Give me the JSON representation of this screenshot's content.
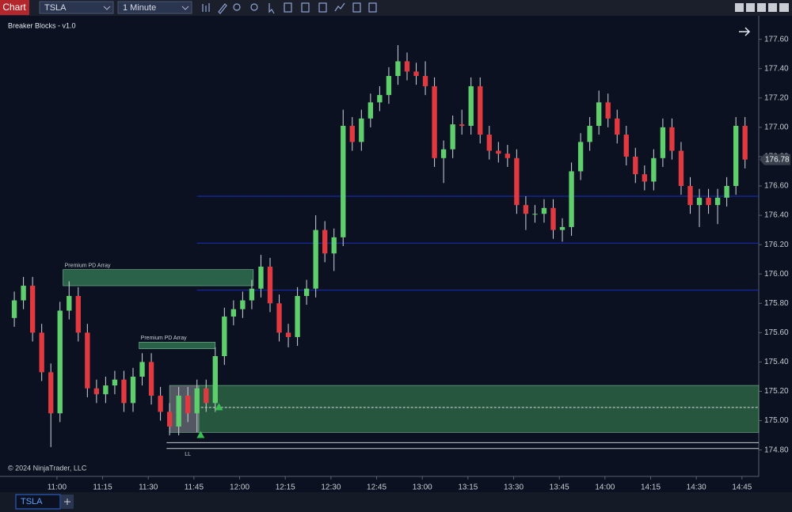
{
  "toolbar": {
    "chart_button": "Chart",
    "instrument": "TSLA",
    "interval": "1 Minute"
  },
  "tab": "TSLA",
  "chart_data": {
    "type": "candlestick",
    "title": "Breaker Blocks - v1.0",
    "copyright": "© 2024 NinjaTrader, LLC",
    "up_color": "#5fcf6e",
    "down_color": "#e0393f",
    "x": [
      646,
      649,
      652,
      655,
      658,
      661,
      664,
      667,
      670,
      673,
      676,
      679,
      682,
      685,
      688,
      691,
      694,
      697,
      700,
      703,
      706,
      709,
      712,
      715,
      718,
      721,
      724,
      727,
      730,
      733,
      736,
      739,
      742,
      745,
      748,
      751,
      754,
      757,
      760,
      763,
      766,
      769,
      772,
      775,
      778,
      781,
      784,
      787,
      790,
      793,
      796,
      799,
      802,
      805,
      808,
      811,
      814,
      817,
      820,
      823,
      826,
      829,
      832,
      835,
      838,
      841,
      844,
      847,
      850,
      853,
      856,
      859,
      862,
      865,
      868,
      871,
      874,
      877,
      880,
      883,
      886
    ],
    "open": [
      175.7,
      175.82,
      175.92,
      175.6,
      175.33,
      175.05,
      175.75,
      175.85,
      175.6,
      175.22,
      175.18,
      175.24,
      175.28,
      175.12,
      175.3,
      175.4,
      175.17,
      175.06,
      174.96,
      175.17,
      175.05,
      175.22,
      175.12,
      175.44,
      175.71,
      175.76,
      175.82,
      175.9,
      176.05,
      175.8,
      175.6,
      175.57,
      175.85,
      175.9,
      176.3,
      176.14,
      176.25,
      177.01,
      176.9,
      177.06,
      177.17,
      177.22,
      177.35,
      177.45,
      177.38,
      177.35,
      177.28,
      176.79,
      176.85,
      177.02,
      177.01,
      177.28,
      176.95,
      176.84,
      176.82,
      176.79,
      176.47,
      176.41,
      176.41,
      176.45,
      176.3,
      176.32,
      176.7,
      176.9,
      177.01,
      177.17,
      177.06,
      176.95,
      176.8,
      176.68,
      176.63,
      176.79,
      177.0,
      176.84,
      176.6,
      176.47,
      176.52,
      176.47,
      176.52,
      176.6,
      177.01
    ],
    "high": [
      175.88,
      175.98,
      175.98,
      175.66,
      175.39,
      175.81,
      175.95,
      175.91,
      175.66,
      175.28,
      175.3,
      175.34,
      175.34,
      175.36,
      175.46,
      175.46,
      175.23,
      175.12,
      175.23,
      175.23,
      175.28,
      175.28,
      175.5,
      175.77,
      175.82,
      175.88,
      175.96,
      176.13,
      176.11,
      175.86,
      175.66,
      175.91,
      175.96,
      176.4,
      176.36,
      176.31,
      177.12,
      177.07,
      177.12,
      177.23,
      177.28,
      177.41,
      177.56,
      177.51,
      177.44,
      177.45,
      177.34,
      176.91,
      177.08,
      177.12,
      177.34,
      177.34,
      177.01,
      176.9,
      176.88,
      176.85,
      176.53,
      176.47,
      176.51,
      176.51,
      176.38,
      176.76,
      176.96,
      177.07,
      177.25,
      177.23,
      177.12,
      177.01,
      176.86,
      176.74,
      176.85,
      177.06,
      177.06,
      176.9,
      176.66,
      176.58,
      176.58,
      176.58,
      176.66,
      177.07,
      177.07
    ],
    "low": [
      175.64,
      175.76,
      175.54,
      175.27,
      174.82,
      174.99,
      175.69,
      175.54,
      175.16,
      175.12,
      175.12,
      175.18,
      175.06,
      175.06,
      175.24,
      175.11,
      175.0,
      174.9,
      174.9,
      174.99,
      174.92,
      175.06,
      175.06,
      175.38,
      175.65,
      175.7,
      175.76,
      175.84,
      175.74,
      175.54,
      175.5,
      175.51,
      175.79,
      175.84,
      176.08,
      176.02,
      176.19,
      176.84,
      176.84,
      177.0,
      177.11,
      177.16,
      177.29,
      177.32,
      177.29,
      177.22,
      176.73,
      176.62,
      176.79,
      176.95,
      176.95,
      176.89,
      176.78,
      176.76,
      176.73,
      176.41,
      176.3,
      176.35,
      176.35,
      176.24,
      176.22,
      176.26,
      176.64,
      176.84,
      176.95,
      177.0,
      176.89,
      176.74,
      176.62,
      176.57,
      176.57,
      176.73,
      176.78,
      176.54,
      176.41,
      176.32,
      176.41,
      176.34,
      176.46,
      176.54,
      176.72
    ],
    "close": [
      175.82,
      175.92,
      175.6,
      175.33,
      175.05,
      175.75,
      175.85,
      175.6,
      175.22,
      175.18,
      175.24,
      175.28,
      175.12,
      175.3,
      175.4,
      175.17,
      175.06,
      174.96,
      175.17,
      175.05,
      175.22,
      175.12,
      175.44,
      175.71,
      175.76,
      175.82,
      175.9,
      176.05,
      175.8,
      175.6,
      175.57,
      175.85,
      175.9,
      176.3,
      176.14,
      176.25,
      177.01,
      176.9,
      177.06,
      177.17,
      177.22,
      177.35,
      177.45,
      177.38,
      177.35,
      177.28,
      176.79,
      176.85,
      177.02,
      177.01,
      177.28,
      176.95,
      176.84,
      176.82,
      176.79,
      176.47,
      176.41,
      176.41,
      176.45,
      176.3,
      176.32,
      176.7,
      176.9,
      177.01,
      177.17,
      177.06,
      176.95,
      176.8,
      176.68,
      176.63,
      176.79,
      177.0,
      176.84,
      176.6,
      176.47,
      176.52,
      176.47,
      176.52,
      176.6,
      177.01,
      176.78
    ],
    "xlim": [
      641.3,
      890.5
    ],
    "xticks": [
      {
        "value": 660,
        "label": "11:00"
      },
      {
        "value": 675,
        "label": "11:15"
      },
      {
        "value": 690,
        "label": "11:30"
      },
      {
        "value": 705,
        "label": "11:45"
      },
      {
        "value": 720,
        "label": "12:00"
      },
      {
        "value": 735,
        "label": "12:15"
      },
      {
        "value": 750,
        "label": "12:30"
      },
      {
        "value": 765,
        "label": "12:45"
      },
      {
        "value": 780,
        "label": "13:00"
      },
      {
        "value": 795,
        "label": "13:15"
      },
      {
        "value": 810,
        "label": "13:30"
      },
      {
        "value": 825,
        "label": "13:45"
      },
      {
        "value": 840,
        "label": "14:00"
      },
      {
        "value": 855,
        "label": "14:15"
      },
      {
        "value": 870,
        "label": "14:30"
      },
      {
        "value": 885,
        "label": "14:45"
      }
    ],
    "ylim": [
      174.62,
      177.76
    ],
    "yticks": [
      {
        "value": 174.8,
        "label": "174.80"
      },
      {
        "value": 175.0,
        "label": "175.00"
      },
      {
        "value": 175.2,
        "label": "175.20"
      },
      {
        "value": 175.4,
        "label": "175.40"
      },
      {
        "value": 175.6,
        "label": "175.60"
      },
      {
        "value": 175.8,
        "label": "175.80"
      },
      {
        "value": 176.0,
        "label": "176.00"
      },
      {
        "value": 176.2,
        "label": "176.20"
      },
      {
        "value": 176.4,
        "label": "176.40"
      },
      {
        "value": 176.6,
        "label": "176.60"
      },
      {
        "value": 176.8,
        "label": "176.80"
      },
      {
        "value": 177.0,
        "label": "177.00"
      },
      {
        "value": 177.2,
        "label": "177.20"
      },
      {
        "value": 177.4,
        "label": "177.40"
      },
      {
        "value": 177.6,
        "label": "177.60"
      }
    ],
    "last_price": 176.78,
    "zones": [
      {
        "label": "Premium PD Array",
        "x": [
          662,
          724.5
        ],
        "y": [
          175.92,
          176.03
        ],
        "color": "#2c6b4c"
      },
      {
        "label": "Premium PD Array",
        "x": [
          687,
          712
        ],
        "y": [
          175.49,
          175.535
        ],
        "color": "#2c6b4c"
      },
      {
        "x": [
          697,
          706.6
        ],
        "y": [
          174.92,
          175.24
        ],
        "color": "#5a5f68"
      },
      {
        "x": [
          706.6,
          890.5
        ],
        "y": [
          174.92,
          175.24
        ],
        "color": "#2a5e43"
      }
    ],
    "levels": [
      {
        "price": 176.53,
        "x": [
          706,
          890.5
        ],
        "color": "#1a2fc0"
      },
      {
        "price": 176.21,
        "x": [
          706,
          890.5
        ],
        "color": "#1a2fc0"
      },
      {
        "price": 175.89,
        "x": [
          706,
          890.5
        ],
        "color": "#1a2fc0"
      },
      {
        "price": 175.09,
        "x": [
          706,
          890.5
        ],
        "color": "#d9dde3",
        "dashed": true
      },
      {
        "price": 174.85,
        "x": [
          696,
          890.5
        ],
        "color": "#c9ccd3"
      },
      {
        "price": 174.81,
        "x": [
          696,
          890.5
        ],
        "color": "#c9ccd3"
      }
    ],
    "swing_label": {
      "label": "LL",
      "x": 703,
      "y": 174.78
    },
    "markers": [
      {
        "x": 707.2,
        "y": 174.93,
        "color": "#37c04f"
      },
      {
        "x": 713.2,
        "y": 175.12,
        "color": "#37c04f"
      }
    ]
  }
}
